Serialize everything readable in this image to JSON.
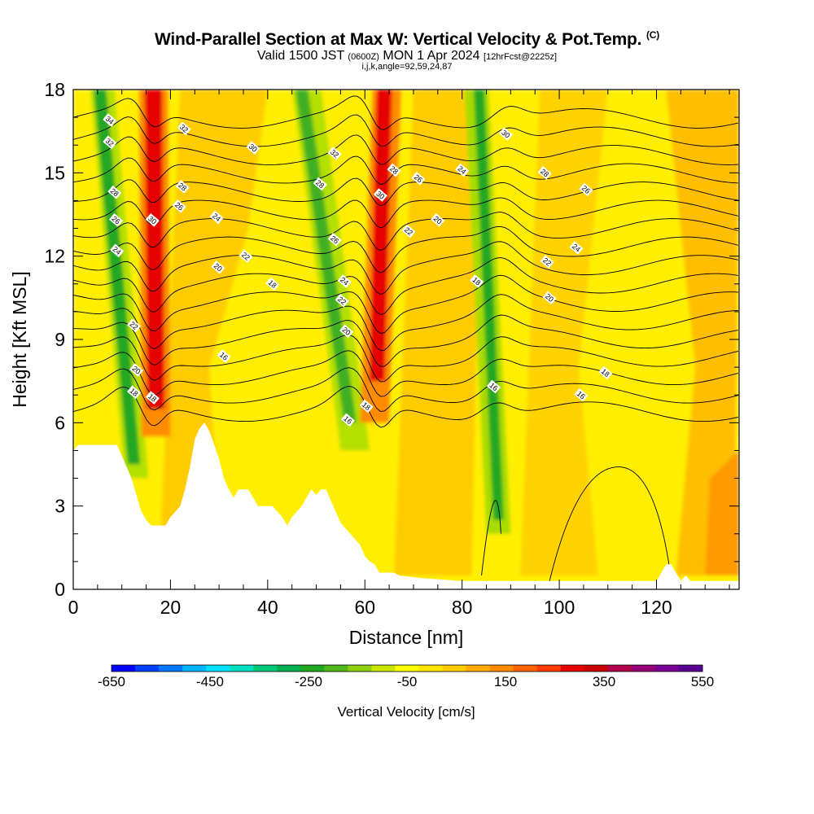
{
  "title": "Wind-Parallel Section at Max W: Vertical Velocity & Pot.Temp.",
  "title_mark": "(C)",
  "subtitle_main": "Valid 1500 JST",
  "subtitle_utc": "(0600Z)",
  "subtitle_date": "MON 1 Apr 2024",
  "subtitle_fcst": "[12hrFcst@2225z]",
  "meta": "i,j,k,angle=92,59,24,87",
  "chart_data": {
    "type": "heatmap",
    "xlabel": "Distance [nm]",
    "ylabel": "Height [Kft MSL]",
    "xlim": [
      0,
      137
    ],
    "ylim": [
      0,
      18
    ],
    "xticks": [
      0,
      20,
      40,
      60,
      80,
      100,
      120
    ],
    "yticks": [
      0,
      3,
      6,
      9,
      12,
      15,
      18
    ],
    "colorbar": {
      "label": "Vertical Velocity [cm/s]",
      "range": [
        -650,
        550
      ],
      "tick_values": [
        -650,
        -450,
        -250,
        -50,
        150,
        350,
        550
      ],
      "colors": [
        "#0000ff",
        "#0040ff",
        "#0078ff",
        "#00b4ff",
        "#00e0ff",
        "#00e0c0",
        "#00c878",
        "#00b050",
        "#20a820",
        "#50b818",
        "#8cd010",
        "#c8e600",
        "#ffff00",
        "#ffe600",
        "#ffcc00",
        "#ffaa00",
        "#ff8c00",
        "#ff6400",
        "#ff3c00",
        "#e60000",
        "#c80000",
        "#b4004b",
        "#960078",
        "#780096",
        "#5a0096"
      ]
    },
    "updrafts_nm": [
      16,
      63
    ],
    "downdrafts_nm": [
      11,
      57,
      87
    ],
    "theta_contour_labels": [
      {
        "x": 7.5,
        "y": 16.9,
        "text": "34"
      },
      {
        "x": 7.5,
        "y": 16.1,
        "text": "32"
      },
      {
        "x": 8.5,
        "y": 14.3,
        "text": "28"
      },
      {
        "x": 8.8,
        "y": 13.3,
        "text": "26"
      },
      {
        "x": 9.0,
        "y": 12.2,
        "text": "24"
      },
      {
        "x": 12.5,
        "y": 9.5,
        "text": "22"
      },
      {
        "x": 13.0,
        "y": 7.9,
        "text": "20"
      },
      {
        "x": 12.5,
        "y": 7.1,
        "text": "18"
      },
      {
        "x": 16.3,
        "y": 13.3,
        "text": "30"
      },
      {
        "x": 16.3,
        "y": 6.9,
        "text": "18"
      },
      {
        "x": 22.8,
        "y": 16.6,
        "text": "32"
      },
      {
        "x": 22.5,
        "y": 14.5,
        "text": "28"
      },
      {
        "x": 21.8,
        "y": 13.8,
        "text": "26"
      },
      {
        "x": 29.5,
        "y": 13.4,
        "text": "24"
      },
      {
        "x": 37.0,
        "y": 15.9,
        "text": "30"
      },
      {
        "x": 35.5,
        "y": 12.0,
        "text": "22"
      },
      {
        "x": 29.8,
        "y": 11.6,
        "text": "20"
      },
      {
        "x": 41.0,
        "y": 11.0,
        "text": "18"
      },
      {
        "x": 31.0,
        "y": 8.4,
        "text": "16"
      },
      {
        "x": 53.8,
        "y": 15.7,
        "text": "32"
      },
      {
        "x": 50.8,
        "y": 14.6,
        "text": "28"
      },
      {
        "x": 53.8,
        "y": 12.6,
        "text": "26"
      },
      {
        "x": 55.8,
        "y": 11.1,
        "text": "24"
      },
      {
        "x": 55.3,
        "y": 10.4,
        "text": "22"
      },
      {
        "x": 56.2,
        "y": 9.3,
        "text": "20"
      },
      {
        "x": 60.3,
        "y": 6.6,
        "text": "18"
      },
      {
        "x": 56.5,
        "y": 6.1,
        "text": "16"
      },
      {
        "x": 63.2,
        "y": 14.2,
        "text": "30"
      },
      {
        "x": 66.0,
        "y": 15.1,
        "text": "28"
      },
      {
        "x": 71.0,
        "y": 14.8,
        "text": "26"
      },
      {
        "x": 69.0,
        "y": 12.9,
        "text": "22"
      },
      {
        "x": 75.0,
        "y": 13.3,
        "text": "20"
      },
      {
        "x": 80.0,
        "y": 15.1,
        "text": "24"
      },
      {
        "x": 89.0,
        "y": 16.4,
        "text": "30"
      },
      {
        "x": 97.0,
        "y": 15.0,
        "text": "28"
      },
      {
        "x": 105.5,
        "y": 14.4,
        "text": "26"
      },
      {
        "x": 103.5,
        "y": 12.3,
        "text": "24"
      },
      {
        "x": 97.5,
        "y": 11.8,
        "text": "22"
      },
      {
        "x": 98.0,
        "y": 10.5,
        "text": "20"
      },
      {
        "x": 83.0,
        "y": 11.1,
        "text": "18"
      },
      {
        "x": 86.5,
        "y": 7.3,
        "text": "16"
      },
      {
        "x": 109.5,
        "y": 7.8,
        "text": "18"
      },
      {
        "x": 104.5,
        "y": 7.0,
        "text": "16"
      }
    ]
  }
}
